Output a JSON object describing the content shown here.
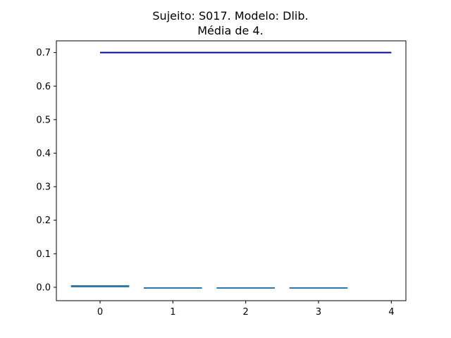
{
  "chart_data": {
    "type": "bar",
    "title": "Sujeito: S017. Modelo: Dlib.",
    "subtitle": "Média de 4.",
    "xlabel": "",
    "ylabel": "",
    "categories": [
      "0",
      "1",
      "2",
      "3"
    ],
    "values": [
      0.006,
      0.0,
      -0.002,
      -0.002
    ],
    "bar_color": "#1f77b4",
    "xticks": [
      0,
      1,
      2,
      3,
      4
    ],
    "yticks": [
      0.0,
      0.1,
      0.2,
      0.3,
      0.4,
      0.5,
      0.6,
      0.7
    ],
    "xlim": [
      -0.6,
      4.2
    ],
    "ylim": [
      -0.04,
      0.735
    ],
    "reference_line": {
      "x_start": 0,
      "x_end": 4,
      "y": 0.7,
      "color": "#0000cc"
    },
    "grid": false,
    "legend": "none"
  }
}
